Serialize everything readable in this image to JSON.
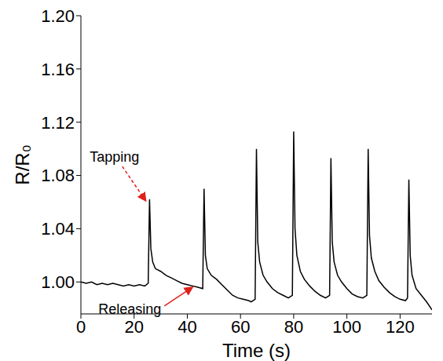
{
  "chart_data": {
    "type": "line",
    "x_label": "Time (s)",
    "y_label": "R/R₀",
    "annotations": [
      "Tapping",
      "Releasing"
    ],
    "xlim": [
      0,
      132
    ],
    "xticks": [
      0,
      20,
      40,
      60,
      80,
      100,
      120
    ],
    "ylim": [
      0.976,
      1.2
    ],
    "yticks": [
      {
        "value": 1.0,
        "label": "1.00"
      },
      {
        "value": 1.04,
        "label": "1.04"
      },
      {
        "value": 1.08,
        "label": "1.08"
      },
      {
        "value": 1.12,
        "label": "1.12"
      },
      {
        "value": 1.16,
        "label": "1.16"
      },
      {
        "value": 1.2,
        "label": "1.20"
      }
    ],
    "grid": false,
    "color": "#000000",
    "x": [
      0,
      2,
      4,
      6,
      8,
      10,
      12,
      14,
      16,
      18,
      20,
      22,
      24,
      25.3,
      25.8,
      26.3,
      27,
      28,
      30,
      32,
      34,
      36,
      38,
      40,
      42,
      44,
      45.8,
      46.3,
      46.8,
      47.5,
      49,
      51,
      53,
      55,
      57,
      59,
      61,
      63,
      64,
      65.5,
      66,
      66.5,
      67.2,
      68.5,
      70,
      72,
      74,
      76,
      78,
      79.5,
      80,
      80.5,
      81.2,
      82.5,
      84,
      86,
      88,
      90,
      92,
      93.5,
      94,
      94.5,
      95.2,
      96.5,
      98,
      100,
      102,
      104,
      106,
      107.5,
      108,
      108.5,
      109.2,
      110.5,
      112,
      114,
      116,
      118,
      120,
      122,
      122.8,
      123.3,
      123.8,
      124.5,
      126,
      128,
      130,
      132
    ],
    "values": [
      1.0,
      0.999,
      1.0,
      0.998,
      0.999,
      0.998,
      0.999,
      0.998,
      0.997,
      0.998,
      0.997,
      0.998,
      0.997,
      0.999,
      1.062,
      1.025,
      1.015,
      1.01,
      1.008,
      1.005,
      1.003,
      1.001,
      0.999,
      0.998,
      0.997,
      0.996,
      0.995,
      1.07,
      1.02,
      1.01,
      1.005,
      1.002,
      0.998,
      0.994,
      0.99,
      0.988,
      0.987,
      0.986,
      0.985,
      0.987,
      1.1,
      1.03,
      1.015,
      1.005,
      1.0,
      0.995,
      0.992,
      0.99,
      0.988,
      0.99,
      1.113,
      1.04,
      1.02,
      1.008,
      1.002,
      0.997,
      0.993,
      0.99,
      0.988,
      0.99,
      1.093,
      1.03,
      1.015,
      1.005,
      1.0,
      0.995,
      0.991,
      0.989,
      0.988,
      0.99,
      1.1,
      1.035,
      1.018,
      1.008,
      1.001,
      0.996,
      0.992,
      0.989,
      0.987,
      0.986,
      0.988,
      1.077,
      1.02,
      1.005,
      0.995,
      0.99,
      0.985,
      0.979
    ]
  }
}
